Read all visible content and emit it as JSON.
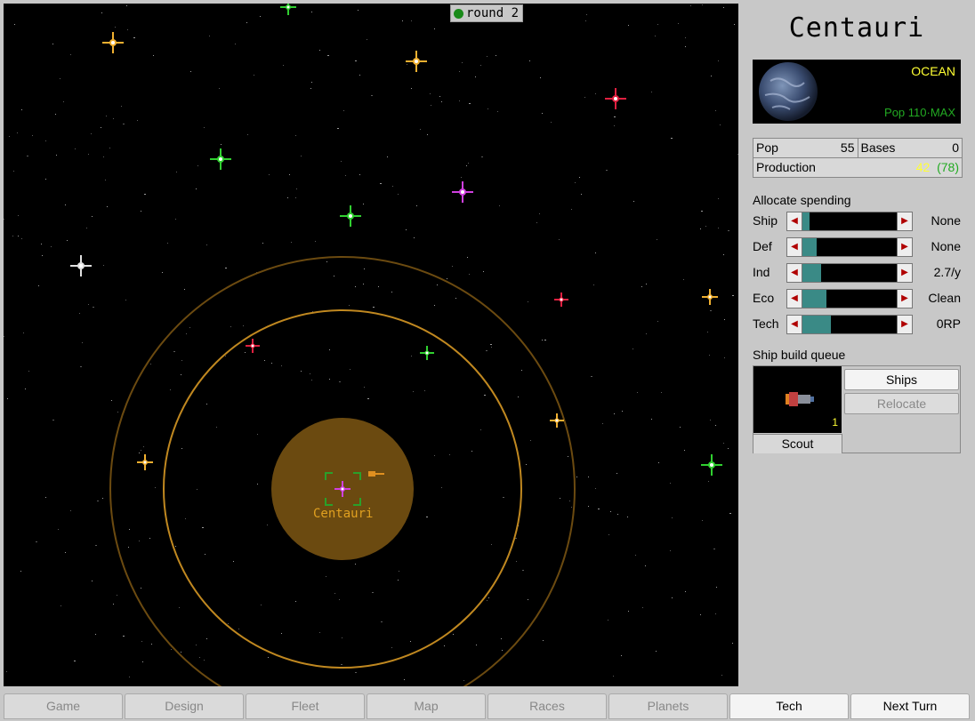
{
  "map": {
    "round_label": "round 2",
    "home_star_label": "Centauri"
  },
  "planet": {
    "name": "Centauri",
    "type": "OCEAN",
    "pop_max": "Pop 110·MAX",
    "stats": {
      "pop_label": "Pop",
      "pop_value": "55",
      "bases_label": "Bases",
      "bases_value": "0",
      "production_label": "Production",
      "production_value": "42",
      "production_total": "(78)"
    }
  },
  "allocation": {
    "title": "Allocate spending",
    "rows": [
      {
        "label": "Ship",
        "value": "None",
        "level": 0.08
      },
      {
        "label": "Def",
        "value": "None",
        "level": 0.15
      },
      {
        "label": "Ind",
        "value": "2.7/y",
        "level": 0.2
      },
      {
        "label": "Eco",
        "value": "Clean",
        "level": 0.25
      },
      {
        "label": "Tech",
        "value": "0RP",
        "level": 0.3
      }
    ]
  },
  "queue": {
    "title": "Ship build queue",
    "ship_name": "Scout",
    "ship_count": "1",
    "ships_button": "Ships",
    "relocate_button": "Relocate"
  },
  "tabs": [
    "Game",
    "Design",
    "Fleet",
    "Map",
    "Races",
    "Planets",
    "Tech",
    "Next Turn"
  ],
  "active_tab": "Tech",
  "colors": {
    "star_yellow": "#f0b030",
    "star_green": "#30d030",
    "star_red": "#e02040",
    "star_purple": "#d040e0",
    "star_white": "#e0e0e0",
    "range_ring": "#c08820",
    "home_disc": "#6b4a10"
  }
}
